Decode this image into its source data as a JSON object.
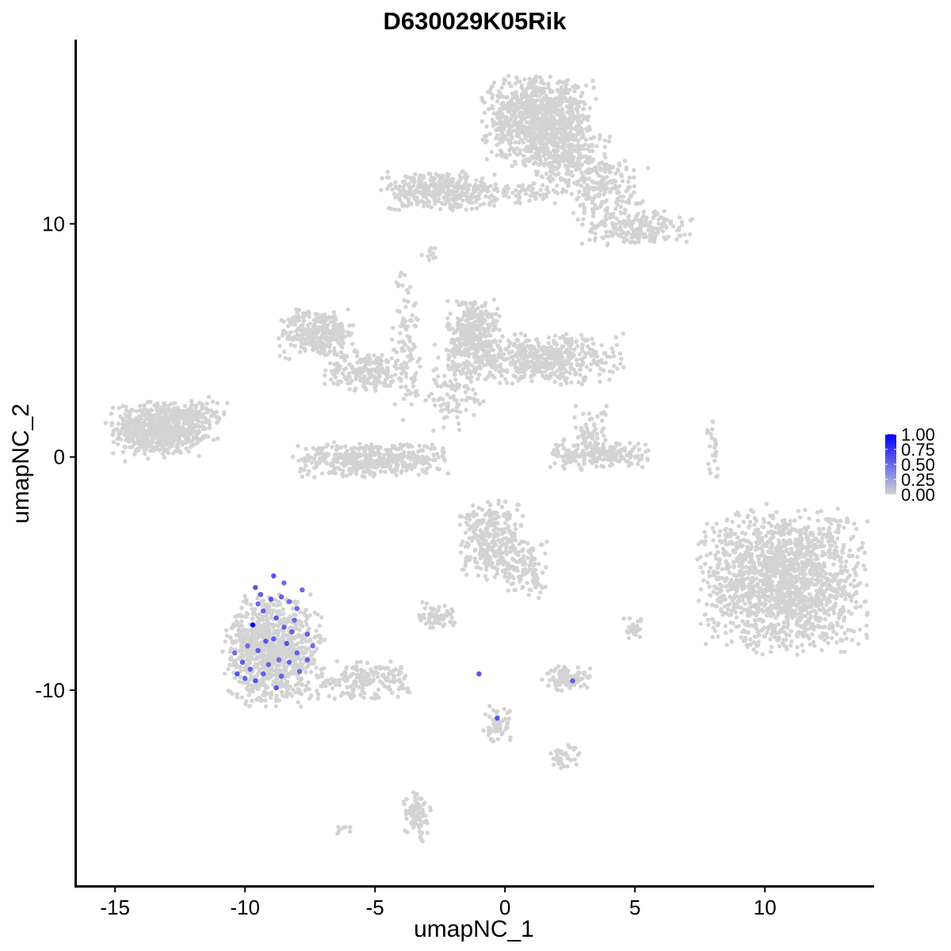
{
  "chart_data": {
    "type": "scatter",
    "title": "D630029K05Rik",
    "xlabel": "umapNC_1",
    "ylabel": "umapNC_2",
    "xlim": [
      -16.5,
      14.2
    ],
    "ylim": [
      -18.4,
      17.9
    ],
    "x_ticks": [
      -15,
      -10,
      -5,
      0,
      5,
      10
    ],
    "x_tick_labels": [
      "-15",
      "-10",
      "-5",
      "0",
      "5",
      "10"
    ],
    "y_ticks": [
      -10,
      0,
      10
    ],
    "y_tick_labels": [
      "-10",
      "0",
      "10"
    ],
    "grid": false,
    "background_color": "#d3d3d3",
    "low_color": "#d3d3d3",
    "high_color": "#0000ff",
    "legend": {
      "position": "right",
      "type": "colorbar",
      "min": 0,
      "max": 1,
      "breaks": [
        0,
        0.25,
        0.5,
        0.75,
        1
      ],
      "labels": [
        "0.00",
        "0.25",
        "0.50",
        "0.75",
        "1.00"
      ]
    },
    "clusters": [
      {
        "cx": -13.3,
        "cy": 1.2,
        "sx": 0.85,
        "sy": 0.55,
        "n": 650
      },
      {
        "cx": -11.8,
        "cy": 1.6,
        "sx": 0.55,
        "sy": 0.45,
        "n": 80
      },
      {
        "cx": -7.2,
        "cy": 5.3,
        "sx": 0.7,
        "sy": 0.5,
        "n": 300
      },
      {
        "cx": -5.3,
        "cy": 3.7,
        "sx": 0.8,
        "sy": 0.4,
        "n": 200
      },
      {
        "cx": -5.1,
        "cy": -0.1,
        "sx": 1.4,
        "sy": 0.35,
        "n": 450
      },
      {
        "cx": -3.8,
        "cy": 5.0,
        "sx": 0.25,
        "sy": 1.6,
        "n": 100
      },
      {
        "cx": -1.2,
        "cy": 5.2,
        "sx": 0.5,
        "sy": 0.8,
        "n": 350
      },
      {
        "cx": 1.5,
        "cy": 4.2,
        "sx": 1.4,
        "sy": 0.5,
        "n": 500
      },
      {
        "cx": -2.0,
        "cy": 3.0,
        "sx": 0.7,
        "sy": 1.0,
        "n": 120
      },
      {
        "cx": 1.3,
        "cy": 14.4,
        "sx": 1.0,
        "sy": 0.9,
        "n": 900
      },
      {
        "cx": 2.4,
        "cy": 12.6,
        "sx": 0.8,
        "sy": 0.7,
        "n": 250
      },
      {
        "cx": -2.5,
        "cy": 11.4,
        "sx": 1.1,
        "sy": 0.4,
        "n": 350
      },
      {
        "cx": 0.3,
        "cy": 11.3,
        "sx": 0.9,
        "sy": 0.2,
        "n": 60
      },
      {
        "cx": 4.0,
        "cy": 11.5,
        "sx": 0.7,
        "sy": 0.6,
        "n": 150
      },
      {
        "cx": 5.0,
        "cy": 9.8,
        "sx": 1.0,
        "sy": 0.35,
        "n": 200
      },
      {
        "cx": 3.6,
        "cy": 0.1,
        "sx": 0.9,
        "sy": 0.3,
        "n": 200
      },
      {
        "cx": 3.3,
        "cy": 1.1,
        "sx": 0.3,
        "sy": 0.5,
        "n": 60
      },
      {
        "cx": 10.7,
        "cy": -5.3,
        "sx": 1.5,
        "sy": 1.45,
        "n": 1600
      },
      {
        "cx": -0.5,
        "cy": -3.6,
        "sx": 0.6,
        "sy": 0.8,
        "n": 300
      },
      {
        "cx": 0.8,
        "cy": -4.8,
        "sx": 0.4,
        "sy": 0.6,
        "n": 100
      },
      {
        "cx": -2.6,
        "cy": -6.8,
        "sx": 0.35,
        "sy": 0.3,
        "n": 70
      },
      {
        "cx": -8.9,
        "cy": -8.3,
        "sx": 0.9,
        "sy": 1.1,
        "n": 900
      },
      {
        "cx": -5.5,
        "cy": -9.6,
        "sx": 0.9,
        "sy": 0.4,
        "n": 180
      },
      {
        "cx": 2.4,
        "cy": -9.5,
        "sx": 0.45,
        "sy": 0.25,
        "n": 90
      },
      {
        "cx": -0.3,
        "cy": -11.6,
        "sx": 0.25,
        "sy": 0.4,
        "n": 60
      },
      {
        "cx": 2.3,
        "cy": -12.9,
        "sx": 0.3,
        "sy": 0.25,
        "n": 40
      },
      {
        "cx": -3.4,
        "cy": -15.4,
        "sx": 0.25,
        "sy": 0.5,
        "n": 80
      },
      {
        "cx": 8.0,
        "cy": 0.3,
        "sx": 0.15,
        "sy": 0.6,
        "n": 25
      },
      {
        "cx": 5.0,
        "cy": -7.4,
        "sx": 0.2,
        "sy": 0.25,
        "n": 25
      },
      {
        "cx": -2.8,
        "cy": 8.7,
        "sx": 0.2,
        "sy": 0.15,
        "n": 12
      },
      {
        "cx": -6.1,
        "cy": -16.0,
        "sx": 0.2,
        "sy": 0.1,
        "n": 8
      }
    ],
    "expressing_cells": [
      {
        "x": -9.6,
        "y": -5.6,
        "v": 0.6
      },
      {
        "x": -9.4,
        "y": -5.9,
        "v": 0.55
      },
      {
        "x": -9.5,
        "y": -6.3,
        "v": 0.5
      },
      {
        "x": -8.9,
        "y": -5.1,
        "v": 0.6
      },
      {
        "x": -8.6,
        "y": -6.0,
        "v": 0.55
      },
      {
        "x": -8.3,
        "y": -6.2,
        "v": 0.5
      },
      {
        "x": -7.8,
        "y": -5.7,
        "v": 0.5
      },
      {
        "x": -9.7,
        "y": -7.2,
        "v": 1.0
      },
      {
        "x": -9.3,
        "y": -6.6,
        "v": 0.55
      },
      {
        "x": -8.8,
        "y": -6.9,
        "v": 0.6
      },
      {
        "x": -8.5,
        "y": -7.3,
        "v": 0.55
      },
      {
        "x": -8.1,
        "y": -7.0,
        "v": 0.5
      },
      {
        "x": -7.6,
        "y": -7.6,
        "v": 0.55
      },
      {
        "x": -7.4,
        "y": -8.1,
        "v": 0.5
      },
      {
        "x": -8.0,
        "y": -8.4,
        "v": 0.55
      },
      {
        "x": -8.4,
        "y": -8.0,
        "v": 0.6
      },
      {
        "x": -8.9,
        "y": -7.8,
        "v": 0.55
      },
      {
        "x": -9.2,
        "y": -7.9,
        "v": 0.6
      },
      {
        "x": -9.5,
        "y": -8.3,
        "v": 0.55
      },
      {
        "x": -9.9,
        "y": -8.1,
        "v": 0.5
      },
      {
        "x": -10.1,
        "y": -8.8,
        "v": 0.55
      },
      {
        "x": -10.3,
        "y": -9.3,
        "v": 0.6
      },
      {
        "x": -10.0,
        "y": -9.5,
        "v": 0.55
      },
      {
        "x": -9.6,
        "y": -9.6,
        "v": 0.6
      },
      {
        "x": -9.1,
        "y": -8.9,
        "v": 0.55
      },
      {
        "x": -8.7,
        "y": -8.7,
        "v": 0.5
      },
      {
        "x": -8.3,
        "y": -8.8,
        "v": 0.55
      },
      {
        "x": -7.9,
        "y": -9.2,
        "v": 0.5
      },
      {
        "x": -8.6,
        "y": -9.4,
        "v": 0.55
      },
      {
        "x": -8.8,
        "y": -9.9,
        "v": 0.6
      },
      {
        "x": -9.3,
        "y": -9.3,
        "v": 0.55
      },
      {
        "x": -10.4,
        "y": -8.4,
        "v": 0.5
      },
      {
        "x": -8.2,
        "y": -7.5,
        "v": 0.55
      },
      {
        "x": -8.0,
        "y": -6.5,
        "v": 0.5
      },
      {
        "x": -9.0,
        "y": -6.1,
        "v": 0.6
      },
      {
        "x": -7.6,
        "y": -8.7,
        "v": 0.55
      },
      {
        "x": -8.5,
        "y": -5.4,
        "v": 0.5
      },
      {
        "x": -9.8,
        "y": -9.1,
        "v": 0.55
      },
      {
        "x": -1.0,
        "y": -9.3,
        "v": 0.6
      },
      {
        "x": -0.3,
        "y": -11.2,
        "v": 0.6
      },
      {
        "x": 2.6,
        "y": -9.6,
        "v": 0.55
      }
    ]
  }
}
